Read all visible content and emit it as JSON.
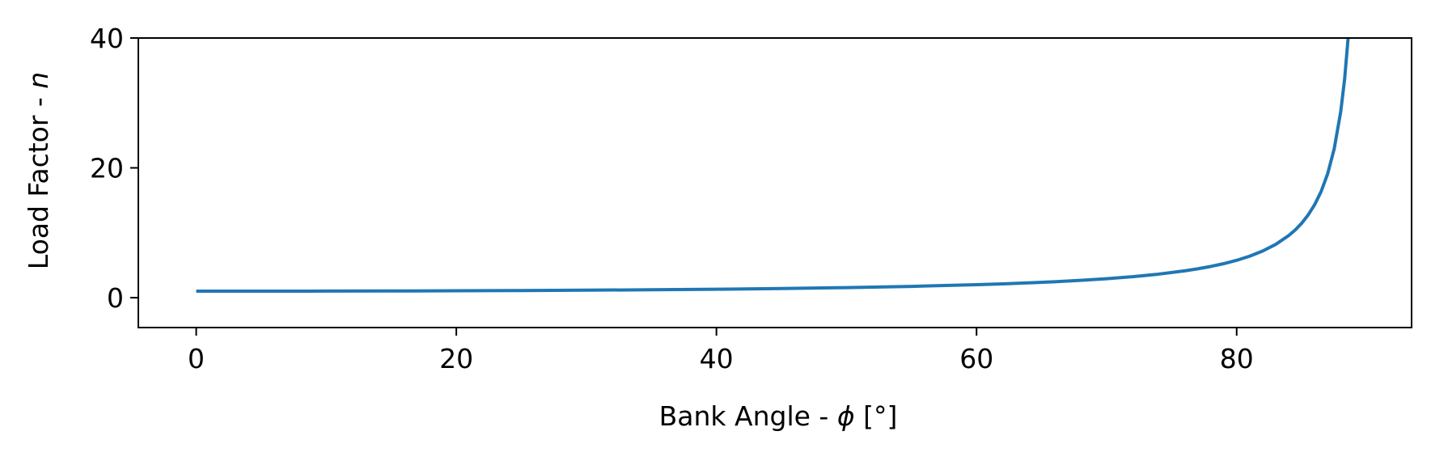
{
  "chart_data": {
    "type": "line",
    "title": "",
    "xlabel": {
      "prefix": "Bank Angle - ",
      "symbol": "ϕ",
      "suffix": " [°]"
    },
    "ylabel": {
      "prefix": "Load Factor - ",
      "symbol": "n"
    },
    "xlim": [
      -4.45,
      93.45
    ],
    "ylim": [
      -4.6,
      40
    ],
    "xticks": [
      0,
      20,
      40,
      60,
      80
    ],
    "yticks": [
      0,
      20,
      40
    ],
    "xtick_labels": [
      "0",
      "20",
      "40",
      "60",
      "80"
    ],
    "ytick_labels": [
      "0",
      "20",
      "40"
    ],
    "grid": false,
    "legend": "none",
    "series": [
      {
        "color": "#1f77b4",
        "x": [
          0,
          5,
          10,
          15,
          20,
          25,
          30,
          35,
          40,
          45,
          50,
          55,
          60,
          62,
          64,
          66,
          68,
          70,
          72,
          74,
          76,
          77,
          78,
          79,
          80,
          81,
          82,
          83,
          84,
          84.5,
          85,
          85.5,
          86,
          86.5,
          87,
          87.5,
          88,
          88.3,
          88.57
        ],
        "y": [
          1.0,
          1.004,
          1.015,
          1.035,
          1.064,
          1.103,
          1.155,
          1.221,
          1.305,
          1.414,
          1.556,
          1.743,
          2.0,
          2.13,
          2.281,
          2.459,
          2.669,
          2.924,
          3.236,
          3.628,
          4.134,
          4.445,
          4.81,
          5.241,
          5.759,
          6.392,
          7.185,
          8.206,
          9.567,
          10.43,
          11.47,
          12.75,
          14.34,
          16.38,
          19.11,
          22.93,
          28.65,
          33.64,
          40.0
        ]
      }
    ]
  }
}
